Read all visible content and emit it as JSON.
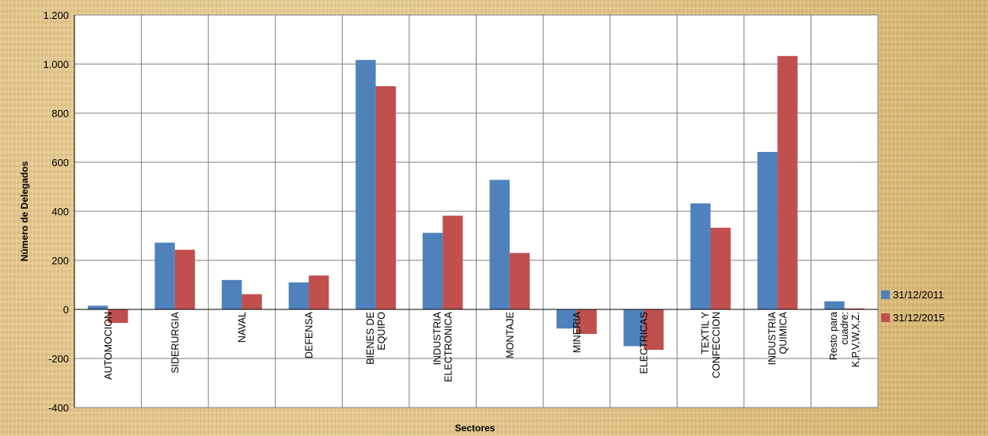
{
  "chart_data": {
    "type": "bar",
    "xlabel": "Sectores",
    "ylabel": "Número de Delegados",
    "ylim": [
      -400,
      1200
    ],
    "yticks": [
      -400,
      -200,
      0,
      200,
      400,
      600,
      800,
      1000,
      1200
    ],
    "ytick_labels": [
      "-400",
      "-200",
      "0",
      "200",
      "400",
      "600",
      "800",
      "1.000",
      "1.200"
    ],
    "grid": true,
    "legend_position": "right",
    "categories": [
      [
        "AUTOMOCION"
      ],
      [
        "SIDERURGIA"
      ],
      [
        "NAVAL"
      ],
      [
        "DEFENSA"
      ],
      [
        "BIENES DE",
        "EQUIPO"
      ],
      [
        "INDUSTRIA",
        "ELECTRONICA"
      ],
      [
        "MONTAJE"
      ],
      [
        "MINERIA"
      ],
      [
        "ELECTRICAS"
      ],
      [
        "TEXTIL Y",
        "CONFECCION"
      ],
      [
        "INDUSTRIA",
        "QUIMICA"
      ],
      [
        "Resto para",
        "cuadre:",
        "K,P,V,W,X,Z."
      ]
    ],
    "series": [
      {
        "name": "31/12/2011",
        "color": "#4f81bd",
        "values": [
          15,
          272,
          120,
          110,
          1017,
          312,
          528,
          -78,
          -150,
          432,
          642,
          33
        ]
      },
      {
        "name": "31/12/2015",
        "color": "#c0504d",
        "values": [
          -55,
          243,
          62,
          138,
          910,
          382,
          230,
          -100,
          -165,
          333,
          1033,
          4
        ]
      }
    ]
  }
}
